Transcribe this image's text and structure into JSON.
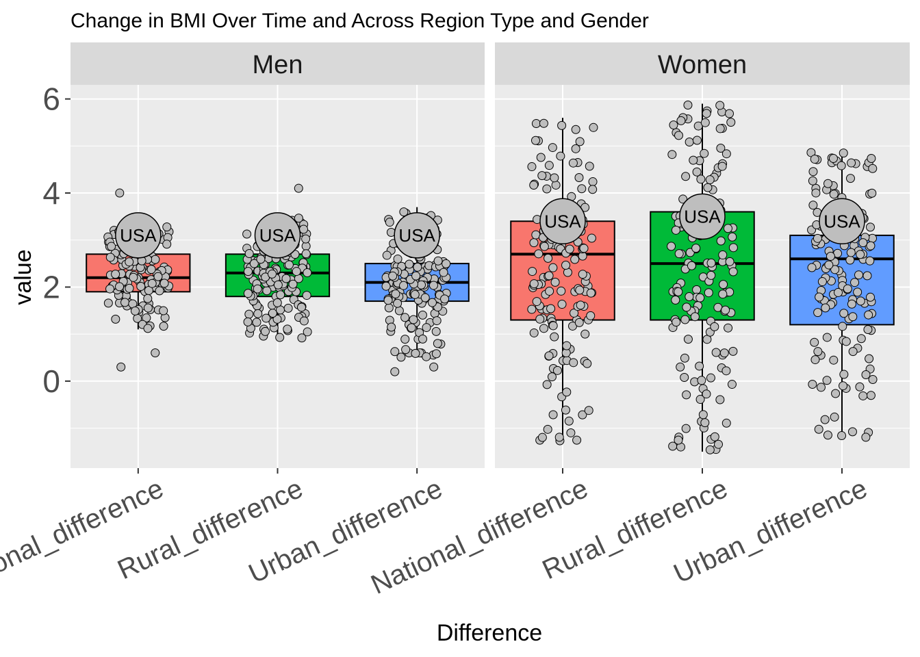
{
  "chart_data": {
    "type": "boxplot",
    "title": "Change in BMI Over Time and Across Region Type and Gender",
    "xlabel": "Difference",
    "ylabel": "value",
    "ylim": [
      -1.85,
      6.3
    ],
    "yticks": [
      0,
      2,
      4,
      6
    ],
    "grid": true,
    "categories": [
      "National_difference",
      "Rural_difference",
      "Urban_difference"
    ],
    "colors": {
      "National_difference": "#F8766D",
      "Rural_difference": "#00BA38",
      "Urban_difference": "#619CFF",
      "point_fill": "#BEBEBE",
      "panel_bg": "#EBEBEB",
      "strip_bg": "#D9D9D9",
      "grid": "#FFFFFF"
    },
    "facets": [
      {
        "label": "Men",
        "boxes": [
          {
            "category": "National_difference",
            "q1": 1.9,
            "median": 2.2,
            "q3": 2.7,
            "whisker_low": 1.1,
            "whisker_high": 3.3,
            "outliers": [
              4.0,
              0.6,
              0.3
            ],
            "usa": 3.1
          },
          {
            "category": "Rural_difference",
            "q1": 1.8,
            "median": 2.3,
            "q3": 2.7,
            "whisker_low": 0.9,
            "whisker_high": 3.5,
            "outliers": [
              4.1
            ],
            "usa": 3.1
          },
          {
            "category": "Urban_difference",
            "q1": 1.7,
            "median": 2.1,
            "q3": 2.5,
            "whisker_low": 0.5,
            "whisker_high": 3.7,
            "outliers": [
              0.3,
              0.2
            ],
            "usa": 3.1
          }
        ]
      },
      {
        "label": "Women",
        "boxes": [
          {
            "category": "National_difference",
            "q1": 1.3,
            "median": 2.7,
            "q3": 3.4,
            "whisker_low": -1.3,
            "whisker_high": 5.6,
            "outliers": [],
            "usa": 3.4
          },
          {
            "category": "Rural_difference",
            "q1": 1.3,
            "median": 2.5,
            "q3": 3.6,
            "whisker_low": -1.5,
            "whisker_high": 5.9,
            "outliers": [],
            "usa": 3.5
          },
          {
            "category": "Urban_difference",
            "q1": 1.2,
            "median": 2.6,
            "q3": 3.1,
            "whisker_low": -1.2,
            "whisker_high": 4.9,
            "outliers": [],
            "usa": 3.4
          }
        ]
      }
    ],
    "point_label": "USA"
  }
}
